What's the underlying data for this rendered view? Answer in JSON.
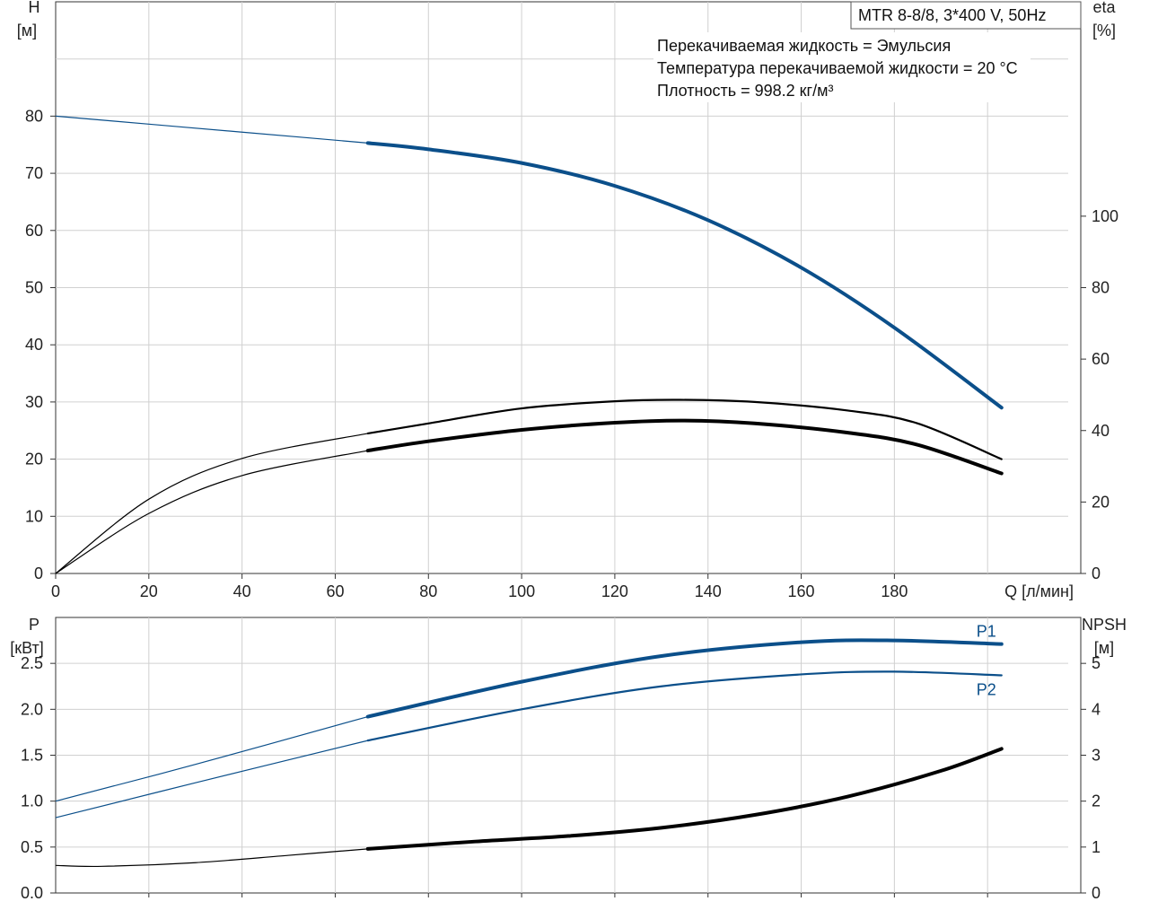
{
  "model_box": {
    "text": "MTR 8-8/8, 3*400 V, 50Hz"
  },
  "info_lines": [
    "Перекачиваемая жидкость = Эмульсия",
    "Температура перекачиваемой жидкости = 20 °C",
    "Плотность = 998.2 кг/м³"
  ],
  "colors": {
    "blue": "#0b4f8a",
    "black": "#000000",
    "grid": "#d0d0d0"
  },
  "chart_data": [
    {
      "type": "line",
      "panel": "top",
      "y_left_label": [
        "H",
        "[м]"
      ],
      "y_right_label": [
        "eta",
        "[%]"
      ],
      "x_label": "Q [л/мин]",
      "xlim": [
        0,
        220
      ],
      "ylim": [
        0,
        100
      ],
      "y2lim": [
        0,
        160
      ],
      "x_ticks": [
        0,
        20,
        40,
        60,
        80,
        100,
        120,
        140,
        160,
        180
      ],
      "y_ticks": [
        0,
        10,
        20,
        30,
        40,
        50,
        60,
        70,
        80
      ],
      "y2_ticks": [
        0,
        20,
        40,
        60,
        80,
        100
      ],
      "grid": true,
      "series": [
        {
          "name": "",
          "axis": "left",
          "color": "#0b4f8a",
          "x": [
            0,
            20,
            40,
            67,
            80,
            100,
            120,
            140,
            160,
            180,
            203
          ],
          "y": [
            80,
            78.6,
            77.2,
            75.3,
            74.2,
            71.8,
            67.8,
            61.8,
            53.5,
            43,
            29
          ],
          "thin_until": 67
        },
        {
          "name": "",
          "axis": "right",
          "color": "#000000",
          "x": [
            0,
            20,
            40,
            67,
            80,
            100,
            120,
            134,
            150,
            170,
            185,
            203
          ],
          "y": [
            0,
            20.8,
            32.2,
            39.2,
            42,
            46.2,
            48.2,
            48.6,
            48,
            45.6,
            42,
            32
          ],
          "thin_until": 67
        },
        {
          "name": "",
          "axis": "right",
          "color": "#000000",
          "x": [
            0,
            20,
            40,
            67,
            80,
            100,
            120,
            135,
            150,
            170,
            185,
            203
          ],
          "y": [
            0,
            16.8,
            27.4,
            34.4,
            37,
            40.2,
            42.2,
            42.8,
            42,
            39.4,
            36,
            28
          ],
          "thin_until": 67,
          "thick": true
        }
      ]
    },
    {
      "type": "line",
      "panel": "bottom",
      "y_left_label": [
        "P",
        "[кВт]"
      ],
      "y_right_label": [
        "NPSH",
        "[м]"
      ],
      "xlim": [
        0,
        220
      ],
      "ylim": [
        0,
        3.0
      ],
      "y2lim": [
        0,
        6
      ],
      "y_ticks": [
        0.0,
        0.5,
        1.0,
        1.5,
        2.0,
        2.5
      ],
      "y_tick_labels": [
        "0.0",
        "0.5",
        "1.0",
        "1.5",
        "2.0",
        "2.5"
      ],
      "y2_ticks": [
        0,
        1,
        2,
        3,
        4,
        5
      ],
      "grid": true,
      "series": [
        {
          "name": "P1",
          "axis": "left",
          "color": "#0b4f8a",
          "x": [
            0,
            30,
            67,
            100,
            130,
            160,
            180,
            203
          ],
          "y": [
            1.0,
            1.4,
            1.92,
            2.3,
            2.58,
            2.73,
            2.75,
            2.71
          ],
          "thin_until": 67,
          "thick": true
        },
        {
          "name": "P2",
          "axis": "left",
          "color": "#0b4f8a",
          "x": [
            0,
            30,
            67,
            100,
            130,
            160,
            180,
            203
          ],
          "y": [
            0.82,
            1.2,
            1.66,
            2.0,
            2.25,
            2.38,
            2.41,
            2.37
          ],
          "thin_until": 67
        },
        {
          "name": "",
          "axis": "right",
          "color": "#000000",
          "x": [
            0,
            10,
            30,
            50,
            67,
            90,
            110,
            130,
            150,
            170,
            190,
            203
          ],
          "y": [
            0.6,
            0.58,
            0.66,
            0.82,
            0.96,
            1.12,
            1.24,
            1.42,
            1.7,
            2.1,
            2.66,
            3.14
          ],
          "thin_until": 67,
          "thick": true
        }
      ]
    }
  ]
}
